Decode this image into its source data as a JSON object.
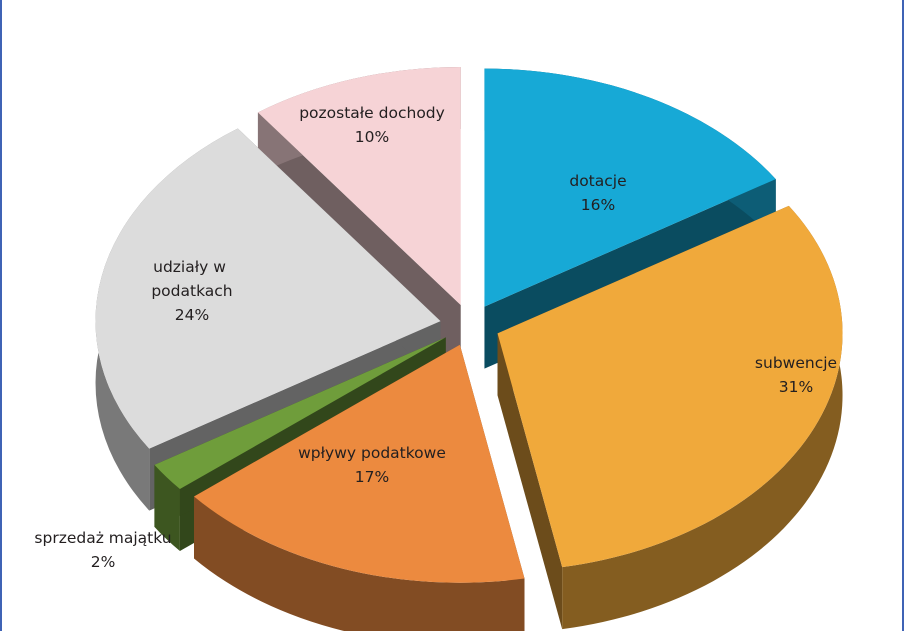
{
  "chart_data": {
    "type": "pie",
    "style": "3d-exploded",
    "legend": "none",
    "slices": [
      {
        "label": "dotacje",
        "value": 16,
        "value_label": "16%",
        "color": "#17a9d6"
      },
      {
        "label": "subwencje",
        "value": 31,
        "value_label": "31%",
        "color": "#f0a93b"
      },
      {
        "label": "wpływy podatkowe",
        "value": 17,
        "value_label": "17%",
        "color": "#ec8a3f"
      },
      {
        "label": "sprzedaż majątku",
        "value": 2,
        "value_label": "2%",
        "color": "#6f9d3b"
      },
      {
        "label": "udziały w podatkach",
        "value": 24,
        "value_label": "24%",
        "color": "#dcdcdc"
      },
      {
        "label": "pozostałe dochody",
        "value": 10,
        "value_label": "10%",
        "color": "#f6d3d6"
      }
    ]
  }
}
